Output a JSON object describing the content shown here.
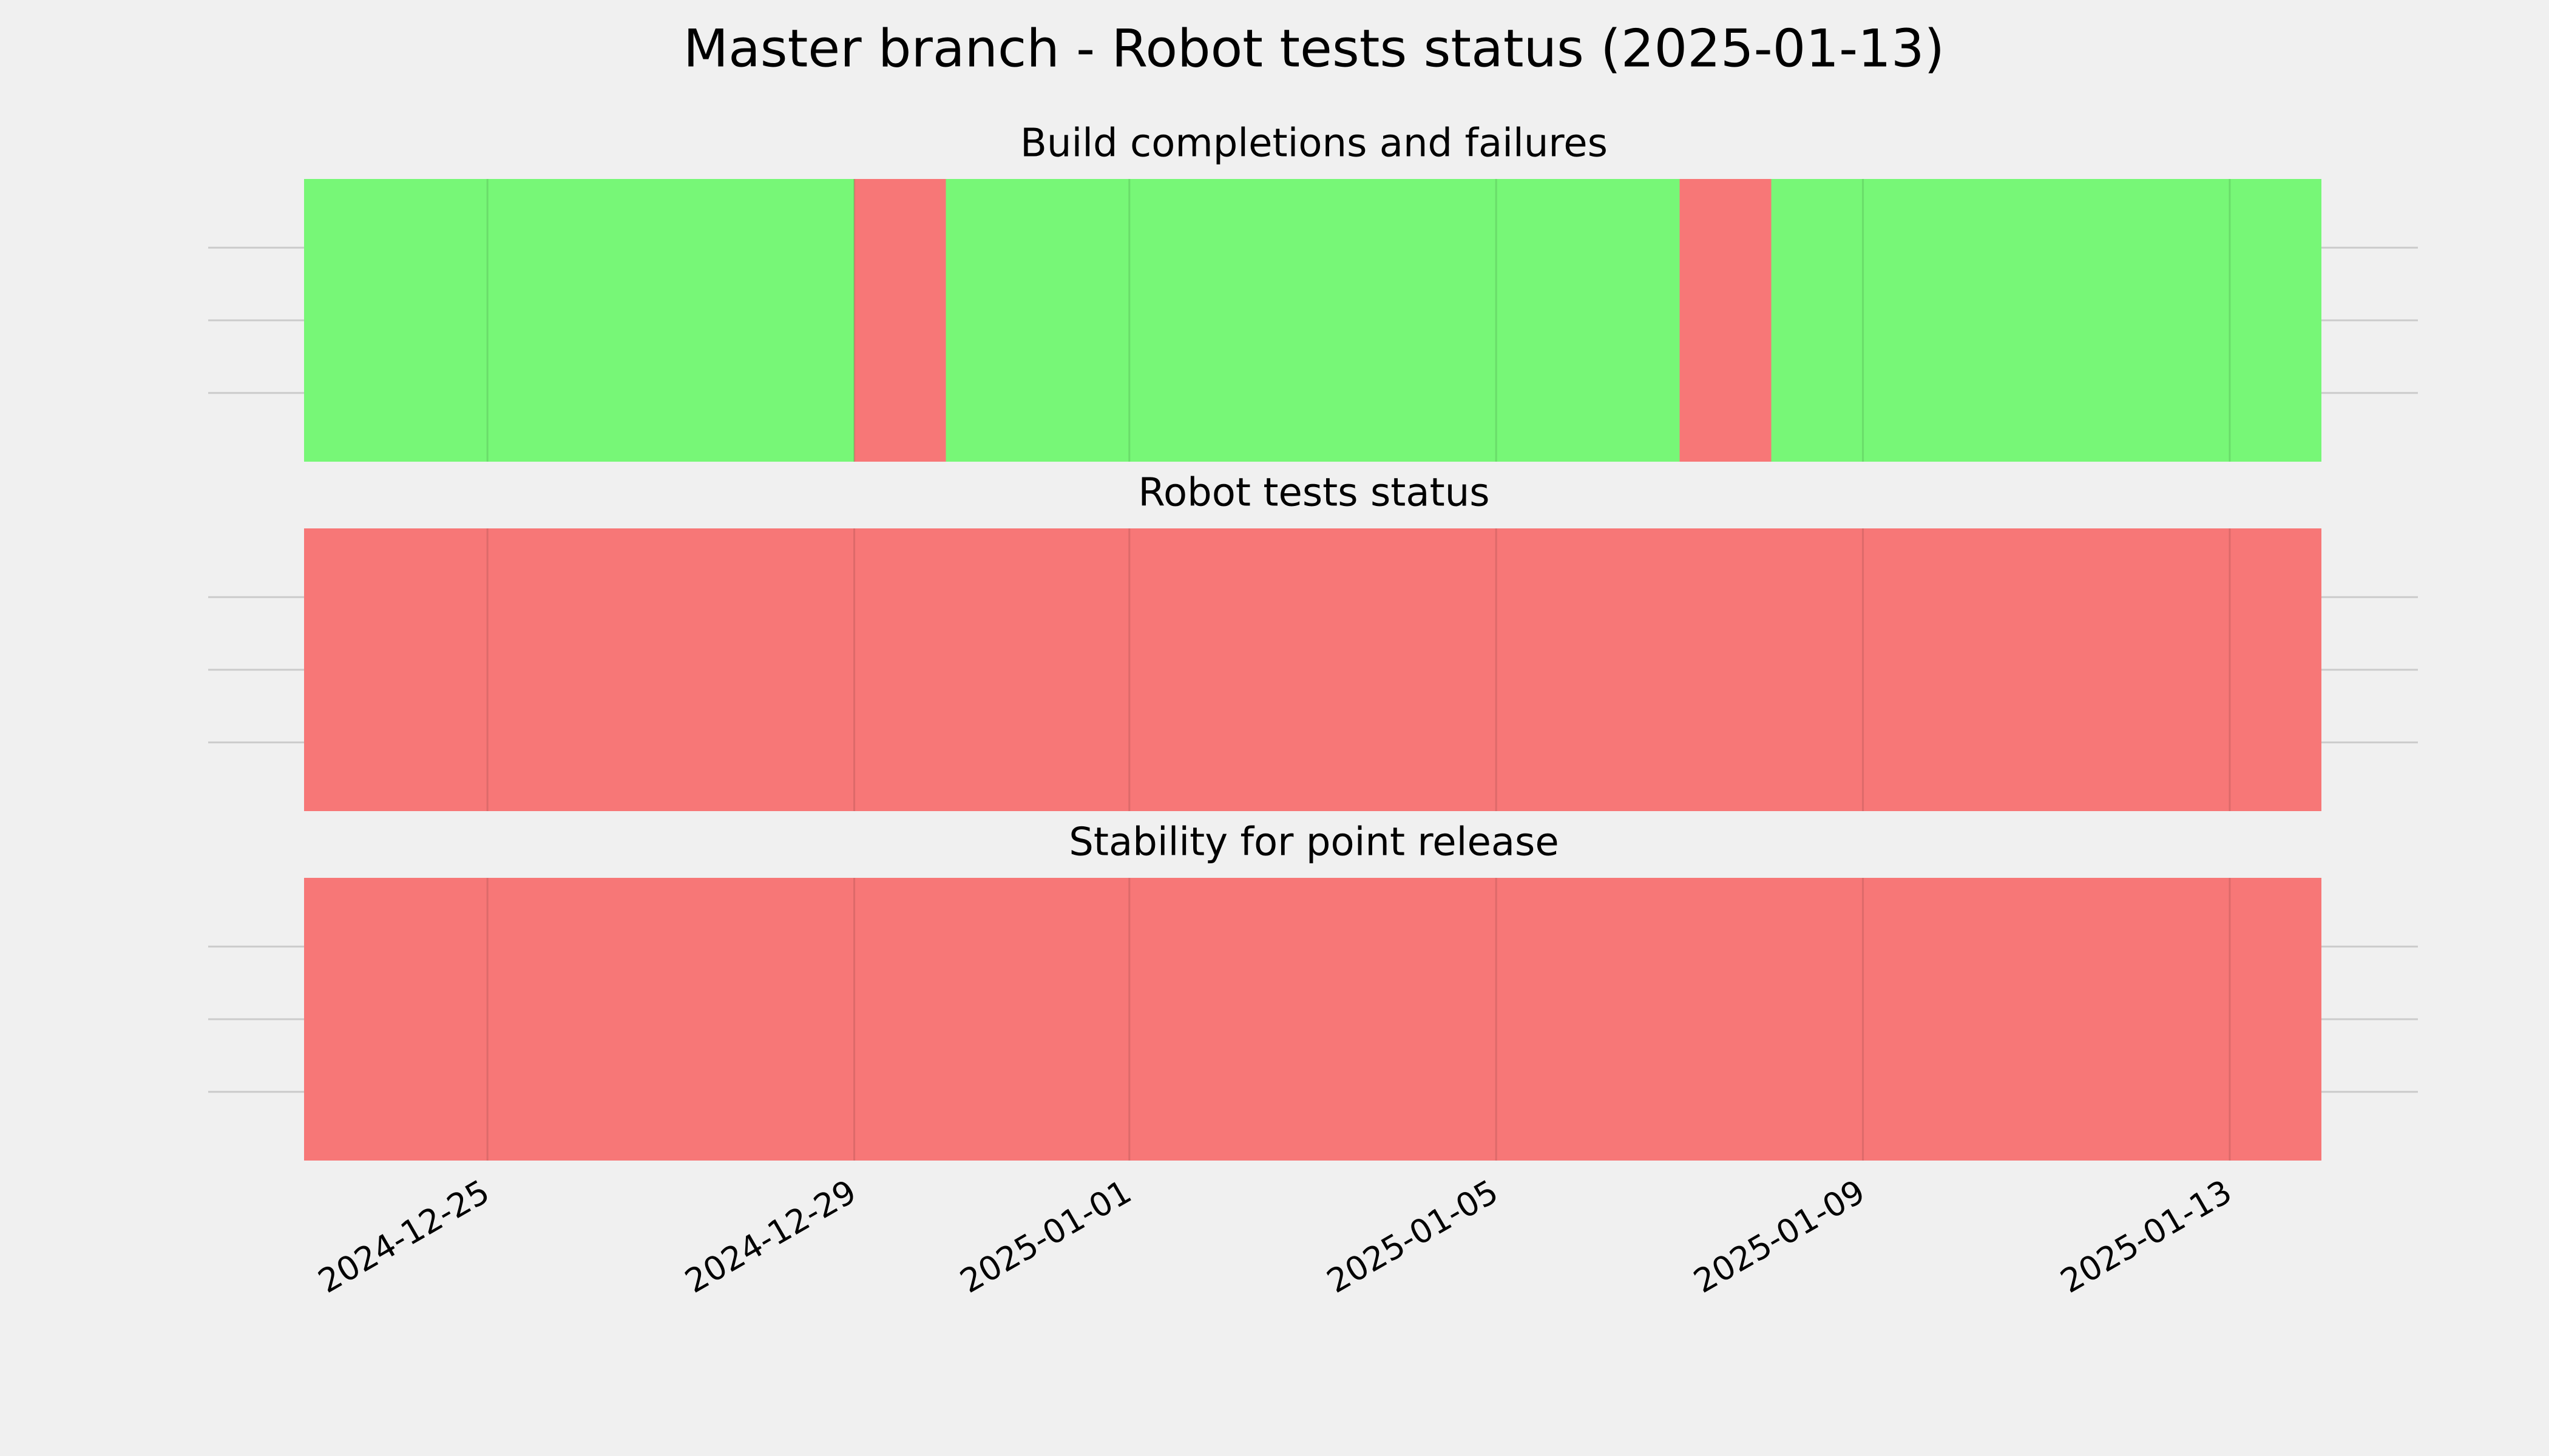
{
  "chart_data": {
    "type": "status-timeline",
    "title": "Master branch - Robot tests status (2025-01-13)",
    "x": [
      "2024-12-23",
      "2024-12-24",
      "2024-12-25",
      "2024-12-26",
      "2024-12-27",
      "2024-12-28",
      "2024-12-29",
      "2024-12-30",
      "2024-12-31",
      "2025-01-01",
      "2025-01-02",
      "2025-01-03",
      "2025-01-04",
      "2025-01-05",
      "2025-01-06",
      "2025-01-07",
      "2025-01-08",
      "2025-01-09",
      "2025-01-10",
      "2025-01-11",
      "2025-01-12",
      "2025-01-13"
    ],
    "xlim": [
      "2024-12-23",
      "2025-01-14"
    ],
    "xticks": [
      "2024-12-25",
      "2024-12-29",
      "2025-01-01",
      "2025-01-05",
      "2025-01-09",
      "2025-01-13"
    ],
    "colors": [
      "#f77777",
      "#77f777"
    ],
    "grid": true,
    "panels": [
      {
        "title": "Build completions and failures",
        "values": [
          1,
          1,
          1,
          1,
          1,
          1,
          0,
          1,
          1,
          1,
          1,
          1,
          1,
          1,
          1,
          0,
          1,
          1,
          1,
          1,
          1,
          1
        ]
      },
      {
        "title": "Robot tests status",
        "values": [
          0,
          0,
          0,
          0,
          0,
          0,
          0,
          0,
          0,
          0,
          0,
          0,
          0,
          0,
          0,
          0,
          0,
          0,
          0,
          0,
          0,
          0
        ]
      },
      {
        "title": "Stability for point release",
        "values": [
          0,
          0,
          0,
          0,
          0,
          0,
          0,
          0,
          0,
          0,
          0,
          0,
          0,
          0,
          0,
          0,
          0,
          0,
          0,
          0,
          0,
          0
        ]
      }
    ]
  }
}
